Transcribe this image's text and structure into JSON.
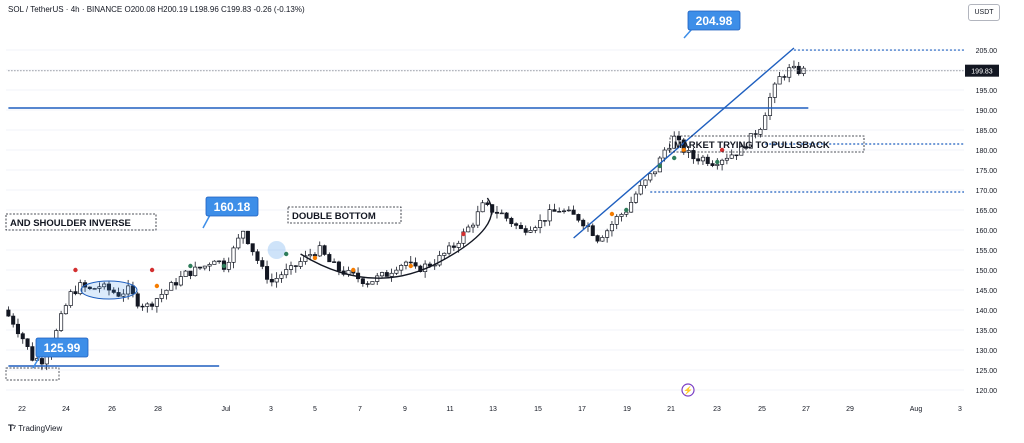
{
  "header": {
    "symbol_line": "SOL / TetherUS · 4h · BINANCE  O200.08  H200.19  L198.96  C199.83  -0.26 (-0.13%)",
    "currency": "USDT"
  },
  "footer": {
    "brand": "TradingView"
  },
  "colors": {
    "up": "#131722",
    "down": "#131722",
    "trend": "#1e5fbf",
    "callout_bg": "#3d8ee8",
    "grid": "#f0f3fa"
  },
  "chart_data": {
    "type": "candlestick",
    "y_ticks": [
      "205.00",
      "200.00",
      "195.00",
      "190.00",
      "185.00",
      "180.00",
      "175.00",
      "170.00",
      "165.00",
      "160.00",
      "155.00",
      "150.00",
      "145.00",
      "140.00",
      "135.00",
      "130.00",
      "125.00",
      "120.00"
    ],
    "ylim": [
      118,
      212
    ],
    "x_ticks": [
      "22",
      "24",
      "26",
      "28",
      "Jul",
      "3",
      "5",
      "7",
      "9",
      "11",
      "13",
      "15",
      "17",
      "19",
      "21",
      "23",
      "25",
      "27",
      "29",
      "Aug",
      "3"
    ],
    "last_price": "199.83",
    "price_path": [
      [
        0,
        140
      ],
      [
        2,
        137
      ],
      [
        4,
        133
      ],
      [
        6,
        128
      ],
      [
        8,
        127.5
      ],
      [
        10,
        131
      ],
      [
        12,
        138
      ],
      [
        14,
        144
      ],
      [
        16,
        146
      ],
      [
        18,
        145
      ],
      [
        20,
        146
      ],
      [
        22,
        145
      ],
      [
        24,
        144
      ],
      [
        26,
        145
      ],
      [
        28,
        142
      ],
      [
        30,
        141
      ],
      [
        32,
        143
      ],
      [
        34,
        145
      ],
      [
        36,
        147
      ],
      [
        38,
        149
      ],
      [
        40,
        150
      ],
      [
        42,
        151
      ],
      [
        44,
        153
      ],
      [
        46,
        151
      ],
      [
        48,
        155
      ],
      [
        50,
        160
      ],
      [
        52,
        155
      ],
      [
        54,
        150
      ],
      [
        56,
        147
      ],
      [
        58,
        149
      ],
      [
        60,
        150
      ],
      [
        62,
        152
      ],
      [
        64,
        154
      ],
      [
        66,
        155
      ],
      [
        68,
        152
      ],
      [
        70,
        150
      ],
      [
        72,
        149
      ],
      [
        74,
        148
      ],
      [
        76,
        147
      ],
      [
        78,
        148
      ],
      [
        80,
        149
      ],
      [
        82,
        151
      ],
      [
        84,
        152
      ],
      [
        86,
        150
      ],
      [
        88,
        151
      ],
      [
        90,
        152
      ],
      [
        92,
        154
      ],
      [
        94,
        156
      ],
      [
        96,
        159
      ],
      [
        98,
        162
      ],
      [
        100,
        166
      ],
      [
        102,
        165
      ],
      [
        104,
        164
      ],
      [
        106,
        162
      ],
      [
        108,
        160
      ],
      [
        110,
        161
      ],
      [
        112,
        162
      ],
      [
        114,
        164
      ],
      [
        116,
        165
      ],
      [
        118,
        164
      ],
      [
        120,
        163
      ],
      [
        122,
        161
      ],
      [
        124,
        158
      ],
      [
        126,
        160
      ],
      [
        128,
        163
      ],
      [
        130,
        165
      ],
      [
        132,
        169
      ],
      [
        134,
        172
      ],
      [
        136,
        175
      ],
      [
        138,
        180
      ],
      [
        140,
        183
      ],
      [
        142,
        180
      ],
      [
        144,
        178
      ],
      [
        146,
        178
      ],
      [
        148,
        177
      ],
      [
        150,
        178
      ],
      [
        152,
        179
      ],
      [
        154,
        180
      ],
      [
        156,
        183
      ],
      [
        158,
        186
      ],
      [
        160,
        193
      ],
      [
        162,
        198
      ],
      [
        164,
        200
      ],
      [
        166,
        199.8
      ]
    ],
    "horizontal_lines": [
      {
        "price": 190.5,
        "style": "solid",
        "from_bar": 0,
        "to_bar": 167
      },
      {
        "price": 126,
        "style": "solid",
        "from_bar": 0,
        "to_bar": 44
      },
      {
        "price": 204.98,
        "style": "dotted",
        "from_bar": 164,
        "to_bar": 230
      },
      {
        "price": 181.5,
        "style": "dotted",
        "from_bar": 158,
        "to_bar": 222
      },
      {
        "price": 169.5,
        "style": "dotted",
        "from_bar": 134,
        "to_bar": 200
      },
      {
        "price": 199.83,
        "style": "dashed",
        "from_bar": 0,
        "to_bar": 230
      }
    ],
    "annotations": [
      {
        "label": "AND SHOULDER INVERSE",
        "style": "box"
      },
      {
        "label": "DOUBLE BOTTOM",
        "style": "box"
      },
      {
        "label": "MARKET TRYING TO PULLSBACK",
        "style": "box"
      }
    ],
    "callouts": [
      "204.98",
      "160.18",
      "125.99"
    ]
  }
}
